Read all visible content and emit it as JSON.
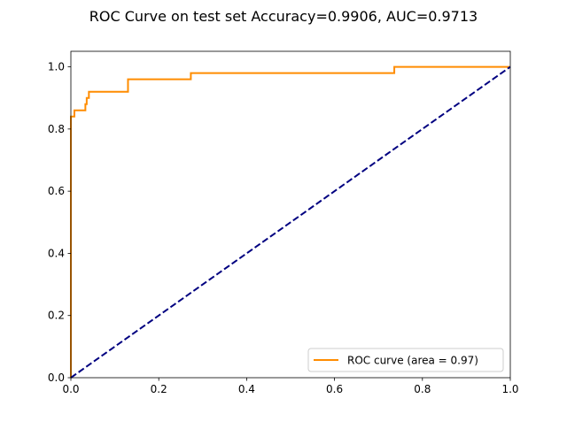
{
  "chart_data": {
    "type": "line",
    "title": "ROC Curve on test set Accuracy=0.9906, AUC=0.9713",
    "xlabel": "",
    "ylabel": "",
    "xlim": [
      0.0,
      1.0
    ],
    "ylim": [
      0.0,
      1.05
    ],
    "x_ticks": [
      0.0,
      0.2,
      0.4,
      0.6,
      0.8,
      1.0
    ],
    "x_tick_labels": [
      "0.0",
      "0.2",
      "0.4",
      "0.6",
      "0.8",
      "1.0"
    ],
    "y_ticks": [
      0.0,
      0.2,
      0.4,
      0.6,
      0.8,
      1.0
    ],
    "y_tick_labels": [
      "0.0",
      "0.2",
      "0.4",
      "0.6",
      "0.8",
      "1.0"
    ],
    "grid": false,
    "legend_position": "lower-right",
    "series": [
      {
        "name": "ROC curve (area = 0.97)",
        "color": "#ff8c00",
        "style": "solid",
        "points": [
          [
            0.0,
            0.0
          ],
          [
            0.0,
            0.84
          ],
          [
            0.008,
            0.84
          ],
          [
            0.008,
            0.86
          ],
          [
            0.033,
            0.86
          ],
          [
            0.033,
            0.88
          ],
          [
            0.036,
            0.88
          ],
          [
            0.036,
            0.9
          ],
          [
            0.041,
            0.9
          ],
          [
            0.041,
            0.92
          ],
          [
            0.13,
            0.92
          ],
          [
            0.13,
            0.96
          ],
          [
            0.273,
            0.96
          ],
          [
            0.273,
            0.98
          ],
          [
            0.736,
            0.98
          ],
          [
            0.736,
            1.0
          ],
          [
            1.0,
            1.0
          ]
        ]
      },
      {
        "color": "#000080",
        "style": "dashed",
        "points": [
          [
            0.0,
            0.0
          ],
          [
            1.0,
            1.0
          ]
        ]
      }
    ]
  }
}
